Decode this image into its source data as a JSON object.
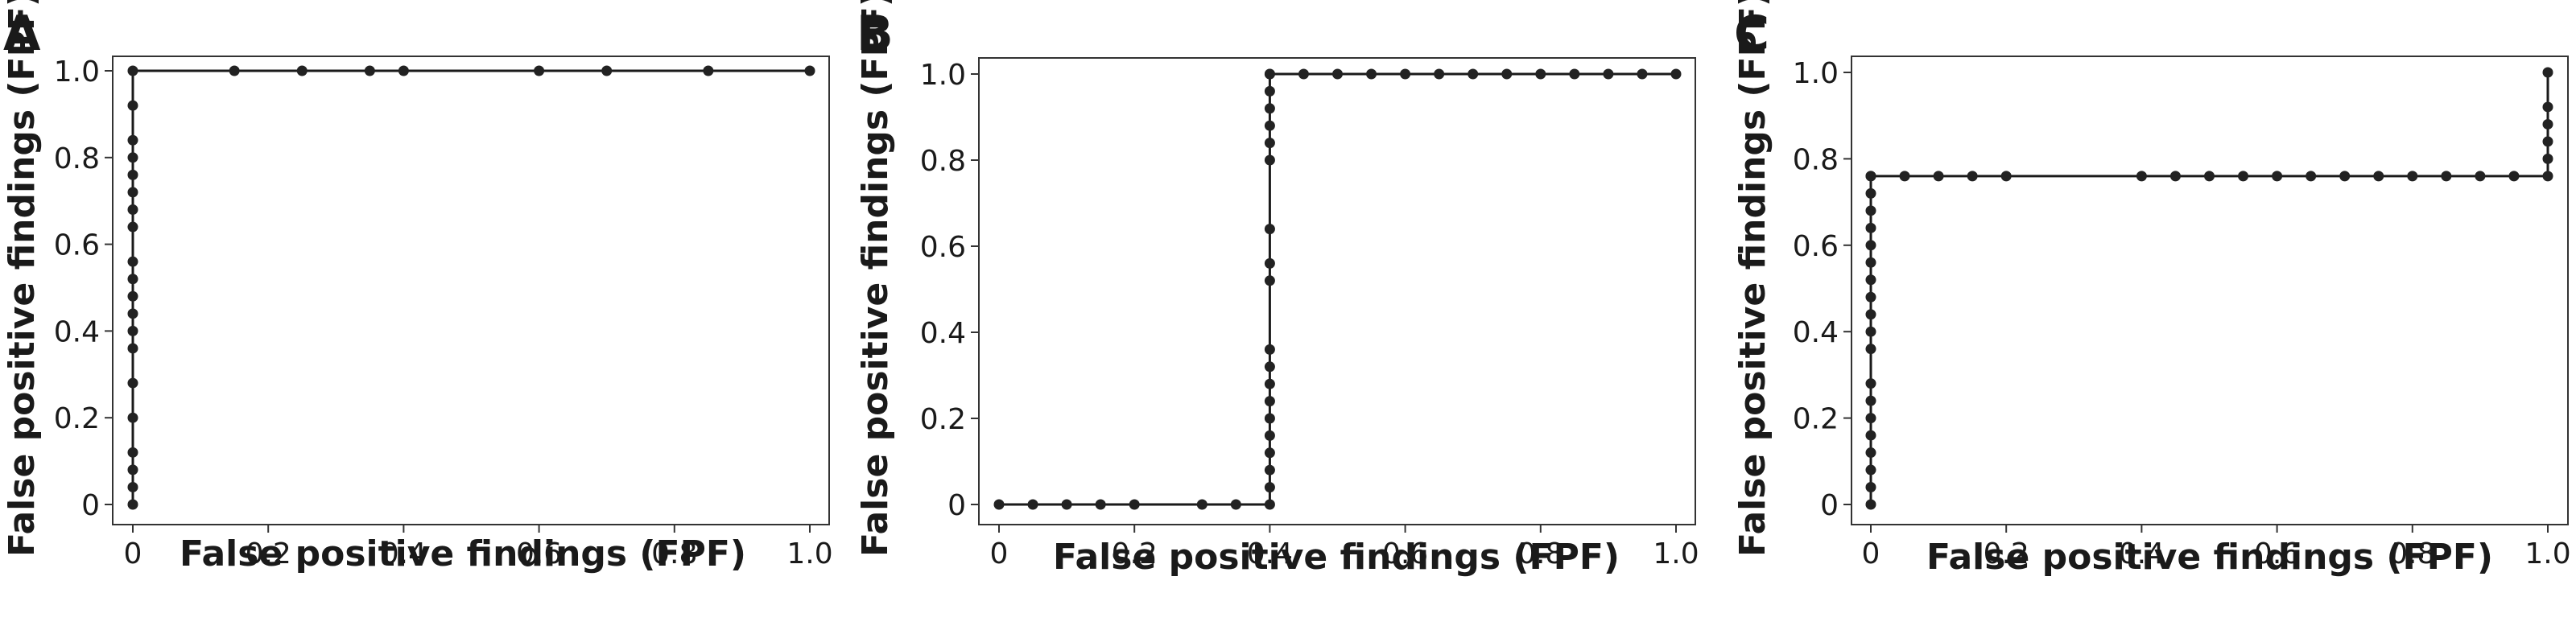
{
  "chart_data": [
    {
      "type": "line",
      "panel_label": "A",
      "xlabel": "False positive findings (FPF)",
      "ylabel": "False positive findings (FPF)",
      "xlim": [
        0,
        1
      ],
      "ylim": [
        0,
        1
      ],
      "x_ticks": [
        "0",
        "0.2",
        "0.4",
        "0.6",
        "0.8",
        "1.0"
      ],
      "y_ticks": [
        "0",
        "0.2",
        "0.4",
        "0.6",
        "0.8",
        "1.0"
      ],
      "grid": false,
      "series": [
        {
          "x": [
            0,
            0,
            0,
            0,
            0,
            0,
            0,
            0,
            0,
            0,
            0,
            0,
            0,
            0,
            0,
            0,
            0,
            0,
            0,
            0,
            0.15,
            0.25,
            0.35,
            0.4,
            0.6,
            0.7,
            0.85,
            1.0
          ],
          "y": [
            0,
            0.04,
            0.08,
            0.12,
            0.2,
            0.28,
            0.36,
            0.4,
            0.44,
            0.48,
            0.52,
            0.56,
            0.64,
            0.68,
            0.72,
            0.76,
            0.8,
            0.84,
            0.92,
            1.0,
            1.0,
            1.0,
            1.0,
            1.0,
            1.0,
            1.0,
            1.0,
            1.0
          ]
        }
      ]
    },
    {
      "type": "line",
      "panel_label": "B",
      "xlabel": "False positive findings (FPF)",
      "ylabel": "False positive findings (FPF)",
      "xlim": [
        0,
        1
      ],
      "ylim": [
        0,
        1
      ],
      "x_ticks": [
        "0",
        "0.2",
        "0.4",
        "0.6",
        "0.8",
        "1.0"
      ],
      "y_ticks": [
        "0",
        "0.2",
        "0.4",
        "0.6",
        "0.8",
        "1.0"
      ],
      "grid": false,
      "series": [
        {
          "x": [
            0,
            0.05,
            0.1,
            0.15,
            0.2,
            0.3,
            0.35,
            0.4,
            0.4,
            0.4,
            0.4,
            0.4,
            0.4,
            0.4,
            0.4,
            0.4,
            0.4,
            0.4,
            0.4,
            0.4,
            0.4,
            0.4,
            0.4,
            0.4,
            0.4,
            0.4,
            0.4,
            0.45,
            0.5,
            0.55,
            0.6,
            0.65,
            0.7,
            0.75,
            0.8,
            0.85,
            0.9,
            0.95,
            1.0
          ],
          "y": [
            0,
            0,
            0,
            0,
            0,
            0,
            0,
            0,
            0.04,
            0.08,
            0.12,
            0.16,
            0.2,
            0.24,
            0.28,
            0.32,
            0.36,
            0.52,
            0.56,
            0.64,
            0.8,
            0.84,
            0.88,
            0.92,
            0.96,
            1.0,
            1.0,
            1.0,
            1.0,
            1.0,
            1.0,
            1.0,
            1.0,
            1.0,
            1.0,
            1.0,
            1.0,
            1.0,
            1.0
          ]
        }
      ]
    },
    {
      "type": "line",
      "panel_label": "C",
      "xlabel": "False positive findings (FPF)",
      "ylabel": "False positive findings (FPF)",
      "xlim": [
        0,
        1
      ],
      "ylim": [
        0,
        1
      ],
      "x_ticks": [
        "0",
        "0.2",
        "0.4",
        "0.6",
        "0.8",
        "1.0"
      ],
      "y_ticks": [
        "0",
        "0.2",
        "0.4",
        "0.6",
        "0.8",
        "1.0"
      ],
      "grid": false,
      "series": [
        {
          "x": [
            0,
            0,
            0,
            0,
            0,
            0,
            0,
            0,
            0,
            0,
            0,
            0,
            0,
            0,
            0,
            0,
            0,
            0,
            0,
            0,
            0.05,
            0.1,
            0.15,
            0.2,
            0.4,
            0.45,
            0.5,
            0.55,
            0.6,
            0.65,
            0.7,
            0.75,
            0.8,
            0.85,
            0.9,
            0.95,
            1.0,
            1.0,
            1.0,
            1.0,
            1.0,
            1.0
          ],
          "y": [
            0,
            0.04,
            0.08,
            0.12,
            0.16,
            0.2,
            0.24,
            0.28,
            0.36,
            0.4,
            0.44,
            0.48,
            0.52,
            0.56,
            0.6,
            0.64,
            0.68,
            0.72,
            0.76,
            0.76,
            0.76,
            0.76,
            0.76,
            0.76,
            0.76,
            0.76,
            0.76,
            0.76,
            0.76,
            0.76,
            0.76,
            0.76,
            0.76,
            0.76,
            0.76,
            0.76,
            0.76,
            0.8,
            0.84,
            0.88,
            0.92,
            1.0
          ]
        }
      ]
    }
  ]
}
